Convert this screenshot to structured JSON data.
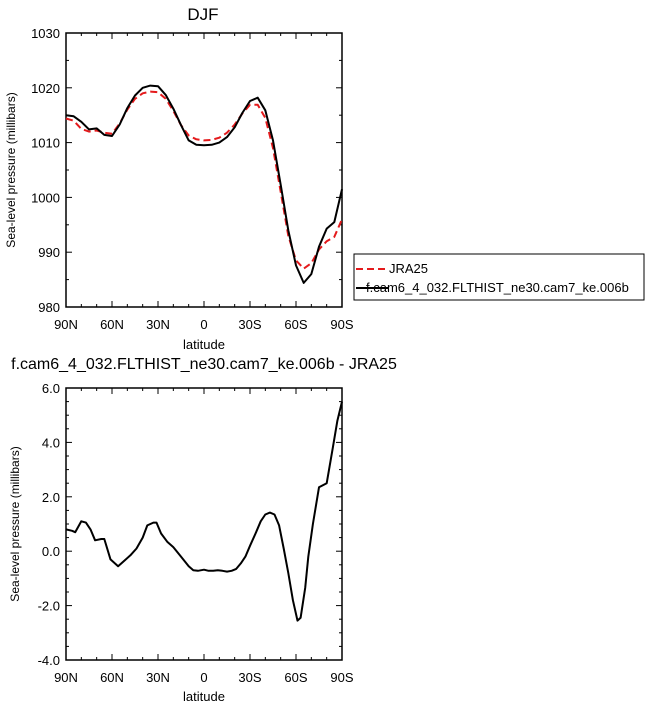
{
  "chart_data": [
    {
      "type": "line",
      "title": "DJF",
      "xlabel": "latitude",
      "ylabel": "Sea-level pressure (millibars)",
      "xlim": [
        90,
        -90
      ],
      "ylim": [
        980,
        1030
      ],
      "xticks": [
        90,
        60,
        30,
        0,
        -30,
        -60,
        -90
      ],
      "xtick_labels": [
        "90N",
        "60N",
        "30N",
        "0",
        "30S",
        "60S",
        "90S"
      ],
      "yticks": [
        980,
        990,
        1000,
        1010,
        1020,
        1030
      ],
      "ytick_labels": [
        "980",
        "990",
        "1000",
        "1010",
        "1020",
        "1030"
      ],
      "grid": false,
      "legend_position": "right",
      "series": [
        {
          "name": "JRA25",
          "color": "#e41a1c",
          "dash": "dashed",
          "x": [
            90,
            85,
            80,
            75,
            70,
            65,
            60,
            55,
            50,
            45,
            40,
            35,
            30,
            25,
            20,
            15,
            10,
            5,
            0,
            -5,
            -10,
            -15,
            -20,
            -25,
            -30,
            -35,
            -40,
            -45,
            -50,
            -55,
            -60,
            -65,
            -70,
            -75,
            -80,
            -85,
            -90
          ],
          "values": [
            1014.4,
            1014.0,
            1012.5,
            1012.0,
            1012.2,
            1011.8,
            1011.6,
            1013.5,
            1016.0,
            1018.0,
            1019.0,
            1019.3,
            1019.2,
            1018.0,
            1015.8,
            1013.2,
            1011.3,
            1010.6,
            1010.4,
            1010.5,
            1010.9,
            1011.8,
            1013.3,
            1015.3,
            1016.9,
            1016.9,
            1014.5,
            1009.0,
            1001.0,
            993.0,
            988.5,
            987.0,
            988.0,
            990.5,
            992.0,
            992.8,
            996.0
          ]
        },
        {
          "name": "f.cam6_4_032.FLTHIST_ne30.cam7_ke.006b",
          "color": "#000000",
          "dash": "solid",
          "x": [
            90,
            85,
            80,
            75,
            70,
            65,
            60,
            55,
            50,
            45,
            40,
            35,
            30,
            25,
            20,
            15,
            10,
            5,
            0,
            -5,
            -10,
            -15,
            -20,
            -25,
            -30,
            -35,
            -40,
            -45,
            -50,
            -55,
            -60,
            -65,
            -70,
            -75,
            -80,
            -85,
            -90
          ],
          "values": [
            1015.0,
            1014.8,
            1013.8,
            1012.4,
            1012.6,
            1011.4,
            1011.2,
            1013.3,
            1016.3,
            1018.6,
            1020.0,
            1020.4,
            1020.3,
            1018.7,
            1016.2,
            1013.2,
            1010.4,
            1009.6,
            1009.5,
            1009.6,
            1010.0,
            1011.0,
            1012.8,
            1015.4,
            1017.6,
            1018.2,
            1015.9,
            1010.4,
            1002.3,
            994.0,
            987.6,
            984.4,
            986.0,
            991.0,
            994.3,
            995.5,
            1001.5
          ]
        }
      ]
    },
    {
      "type": "line",
      "title": "f.cam6_4_032.FLTHIST_ne30.cam7_ke.006b - JRA25",
      "xlabel": "latitude",
      "ylabel": "Sea-level pressure (millibars)",
      "xlim": [
        90,
        -90
      ],
      "ylim": [
        -4.0,
        6.0
      ],
      "xticks": [
        90,
        60,
        30,
        0,
        -30,
        -60,
        -90
      ],
      "xtick_labels": [
        "90N",
        "60N",
        "30N",
        "0",
        "30S",
        "60S",
        "90S"
      ],
      "yticks": [
        -4,
        -2,
        0,
        2,
        4,
        6
      ],
      "ytick_labels": [
        "-4.0",
        "-2.0",
        "0.0",
        "2.0",
        "4.0",
        "6.0"
      ],
      "grid": false,
      "series": [
        {
          "color": "#000000",
          "dash": "solid",
          "x": [
            90,
            86,
            84,
            80,
            77,
            74,
            71,
            67,
            65,
            61,
            56,
            52,
            48,
            44,
            40,
            37,
            33,
            31,
            28,
            24,
            20,
            15,
            10,
            7,
            4,
            0,
            -3,
            -6,
            -9,
            -12,
            -15,
            -18,
            -21,
            -24,
            -27,
            -30,
            -34,
            -37,
            -40,
            -43,
            -46,
            -49,
            -52,
            -55,
            -58,
            -61,
            -63,
            -66,
            -68,
            -71,
            -75,
            -80,
            -84,
            -87,
            -90
          ],
          "values": [
            0.8,
            0.75,
            0.7,
            1.1,
            1.05,
            0.8,
            0.4,
            0.45,
            0.45,
            -0.3,
            -0.55,
            -0.35,
            -0.15,
            0.1,
            0.5,
            0.95,
            1.05,
            1.05,
            0.65,
            0.35,
            0.15,
            -0.2,
            -0.55,
            -0.7,
            -0.72,
            -0.68,
            -0.72,
            -0.72,
            -0.7,
            -0.72,
            -0.75,
            -0.72,
            -0.65,
            -0.45,
            -0.2,
            0.2,
            0.7,
            1.1,
            1.35,
            1.42,
            1.35,
            0.95,
            0.1,
            -0.8,
            -1.8,
            -2.55,
            -2.45,
            -1.35,
            -0.2,
            1.0,
            2.35,
            2.5,
            3.8,
            4.8,
            5.5
          ]
        }
      ]
    }
  ]
}
